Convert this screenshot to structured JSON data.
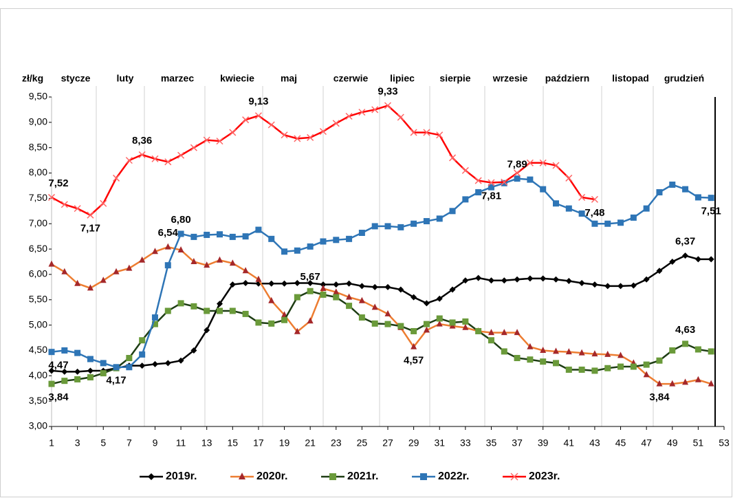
{
  "chart_data": {
    "type": "line",
    "y_label": "zł/kg",
    "months": [
      "stycze",
      "luty",
      "marzec",
      "kwiecie",
      "maj",
      "czerwie",
      "lipiec",
      "sierpie",
      "wrzesie",
      "październ",
      "listopad",
      "grudzień"
    ],
    "x": [
      1,
      2,
      3,
      4,
      5,
      6,
      7,
      8,
      9,
      10,
      11,
      12,
      13,
      14,
      15,
      16,
      17,
      18,
      19,
      20,
      21,
      22,
      23,
      24,
      25,
      26,
      27,
      28,
      29,
      30,
      31,
      32,
      33,
      34,
      35,
      36,
      37,
      38,
      39,
      40,
      41,
      42,
      43,
      44,
      45,
      46,
      47,
      48,
      49,
      50,
      51,
      52
    ],
    "xlim": [
      1,
      53
    ],
    "xticks": [
      1,
      3,
      5,
      7,
      9,
      11,
      13,
      15,
      17,
      19,
      21,
      23,
      25,
      27,
      29,
      31,
      33,
      35,
      37,
      39,
      41,
      43,
      45,
      47,
      49,
      51,
      53
    ],
    "ylim": [
      3,
      9.5
    ],
    "yticks": [
      {
        "value": 3,
        "label": "3,00"
      },
      {
        "value": 3.5,
        "label": "3,50"
      },
      {
        "value": 4,
        "label": "4,00"
      },
      {
        "value": 4.5,
        "label": "4,50"
      },
      {
        "value": 5,
        "label": "5,00"
      },
      {
        "value": 5.5,
        "label": "5,50"
      },
      {
        "value": 6,
        "label": "6,00"
      },
      {
        "value": 6.5,
        "label": "6,50"
      },
      {
        "value": 7,
        "label": "7,00"
      },
      {
        "value": 7.5,
        "label": "7,50"
      },
      {
        "value": 8,
        "label": "8,00"
      },
      {
        "value": 8.5,
        "label": "8,50"
      },
      {
        "value": 9,
        "label": "9,00"
      },
      {
        "value": 9.5,
        "label": "9,50"
      }
    ],
    "grid": false,
    "legend": "bottom",
    "series": [
      {
        "name": "2019r.",
        "color": "#000000",
        "marker": "diamond",
        "marker_color": "#000000",
        "values": [
          4.1,
          4.08,
          4.08,
          4.1,
          4.1,
          4.15,
          4.2,
          4.2,
          4.23,
          4.25,
          4.3,
          4.5,
          4.9,
          5.42,
          5.8,
          5.83,
          5.82,
          5.82,
          5.82,
          5.83,
          5.83,
          5.8,
          5.8,
          5.82,
          5.77,
          5.75,
          5.75,
          5.7,
          5.55,
          5.43,
          5.52,
          5.7,
          5.88,
          5.93,
          5.88,
          5.88,
          5.9,
          5.92,
          5.92,
          5.9,
          5.87,
          5.83,
          5.8,
          5.77,
          5.77,
          5.78,
          5.9,
          6.07,
          6.25,
          6.37,
          6.3,
          6.3
        ],
        "value_labels": [
          null,
          null,
          null,
          null,
          null,
          null,
          null,
          null,
          null,
          null,
          null,
          null,
          null,
          null,
          null,
          null,
          null,
          null,
          null,
          null,
          null,
          null,
          null,
          null,
          null,
          null,
          null,
          null,
          null,
          null,
          null,
          null,
          null,
          null,
          null,
          null,
          null,
          null,
          null,
          null,
          null,
          null,
          null,
          null,
          null,
          null,
          null,
          null,
          null,
          "6,37",
          null,
          null
        ]
      },
      {
        "name": "2020r.",
        "color": "#ed7d31",
        "marker": "triangle",
        "marker_color": "#a5282a",
        "values": [
          6.2,
          6.05,
          5.82,
          5.73,
          5.88,
          6.05,
          6.12,
          6.28,
          6.45,
          6.54,
          6.48,
          6.25,
          6.18,
          6.28,
          6.22,
          6.07,
          5.9,
          5.48,
          5.2,
          4.87,
          5.08,
          5.72,
          5.65,
          5.55,
          5.48,
          5.35,
          5.22,
          4.95,
          4.57,
          4.9,
          5.02,
          4.98,
          4.95,
          4.88,
          4.85,
          4.85,
          4.85,
          4.57,
          4.5,
          4.48,
          4.47,
          4.45,
          4.43,
          4.42,
          4.4,
          4.25,
          4.02,
          3.84,
          3.84,
          3.87,
          3.92,
          3.84
        ],
        "value_labels": [
          null,
          null,
          null,
          null,
          null,
          null,
          null,
          null,
          null,
          "6,54",
          null,
          null,
          null,
          null,
          null,
          null,
          null,
          null,
          null,
          null,
          null,
          null,
          null,
          null,
          null,
          null,
          null,
          null,
          "4,57",
          null,
          null,
          null,
          null,
          null,
          null,
          null,
          null,
          null,
          null,
          null,
          null,
          null,
          null,
          null,
          null,
          null,
          null,
          "3,84",
          null,
          null,
          null,
          null
        ]
      },
      {
        "name": "2021r.",
        "color": "#1e3d14",
        "marker": "square",
        "marker_color": "#6a9a3a",
        "values": [
          3.84,
          3.9,
          3.93,
          3.97,
          4.05,
          4.15,
          4.35,
          4.7,
          5.02,
          5.28,
          5.43,
          5.37,
          5.28,
          5.28,
          5.28,
          5.22,
          5.05,
          5.03,
          5.1,
          5.55,
          5.67,
          5.6,
          5.55,
          5.38,
          5.15,
          5.03,
          5.02,
          4.98,
          4.88,
          5.02,
          5.13,
          5.05,
          5.07,
          4.88,
          4.7,
          4.48,
          4.35,
          4.32,
          4.28,
          4.25,
          4.12,
          4.12,
          4.1,
          4.15,
          4.18,
          4.18,
          4.22,
          4.3,
          4.5,
          4.63,
          4.52,
          4.48
        ],
        "value_labels": [
          "3,84",
          null,
          null,
          null,
          null,
          null,
          null,
          null,
          null,
          null,
          null,
          null,
          null,
          null,
          null,
          null,
          null,
          null,
          null,
          null,
          "5,67",
          null,
          null,
          null,
          null,
          null,
          null,
          null,
          null,
          null,
          null,
          null,
          null,
          null,
          null,
          null,
          null,
          null,
          null,
          null,
          null,
          null,
          null,
          null,
          null,
          null,
          null,
          null,
          null,
          "4,63",
          null,
          null
        ]
      },
      {
        "name": "2022r.",
        "color": "#2e75b6",
        "marker": "square",
        "marker_color": "#2e75b6",
        "values": [
          4.47,
          4.5,
          4.45,
          4.33,
          4.25,
          4.17,
          4.17,
          4.42,
          5.15,
          6.18,
          6.8,
          6.74,
          6.78,
          6.79,
          6.74,
          6.75,
          6.88,
          6.7,
          6.45,
          6.47,
          6.55,
          6.65,
          6.68,
          6.7,
          6.82,
          6.95,
          6.95,
          6.93,
          7.0,
          7.05,
          7.1,
          7.25,
          7.48,
          7.62,
          7.72,
          7.8,
          7.89,
          7.87,
          7.68,
          7.4,
          7.3,
          7.2,
          7.0,
          7.0,
          7.02,
          7.12,
          7.3,
          7.62,
          7.77,
          7.68,
          7.52,
          7.51
        ],
        "value_labels": [
          "4,47",
          null,
          null,
          null,
          null,
          "4,17",
          null,
          null,
          null,
          null,
          "6,80",
          null,
          null,
          null,
          null,
          null,
          null,
          null,
          null,
          null,
          null,
          null,
          null,
          null,
          null,
          null,
          null,
          null,
          null,
          null,
          null,
          null,
          null,
          null,
          null,
          null,
          "7,89",
          null,
          null,
          null,
          null,
          null,
          null,
          null,
          null,
          null,
          null,
          null,
          null,
          null,
          null,
          "7,51"
        ]
      },
      {
        "name": "2023r.",
        "color": "#ff0000",
        "marker": "x",
        "marker_color": "#ff6666",
        "values": [
          7.52,
          7.38,
          7.3,
          7.17,
          7.4,
          7.9,
          8.25,
          8.36,
          8.28,
          8.22,
          8.35,
          8.5,
          8.65,
          8.63,
          8.8,
          9.05,
          9.13,
          8.95,
          8.75,
          8.68,
          8.7,
          8.82,
          8.98,
          9.12,
          9.2,
          9.25,
          9.33,
          9.1,
          8.8,
          8.8,
          8.75,
          8.3,
          8.05,
          7.85,
          7.81,
          7.82,
          8.0,
          8.2,
          8.2,
          8.15,
          7.9,
          7.52,
          7.48,
          null,
          null,
          null,
          null,
          null,
          null,
          null,
          null,
          null
        ],
        "value_labels": [
          "7,52",
          null,
          null,
          "7,17",
          null,
          null,
          null,
          "8,36",
          null,
          null,
          null,
          null,
          null,
          null,
          null,
          null,
          "9,13",
          null,
          null,
          null,
          null,
          null,
          null,
          null,
          null,
          null,
          "9,33",
          null,
          null,
          null,
          null,
          null,
          null,
          null,
          "7,81",
          null,
          null,
          null,
          null,
          null,
          null,
          null,
          "7,48",
          null,
          null,
          null,
          null,
          null,
          null,
          null,
          null,
          null
        ]
      }
    ]
  }
}
